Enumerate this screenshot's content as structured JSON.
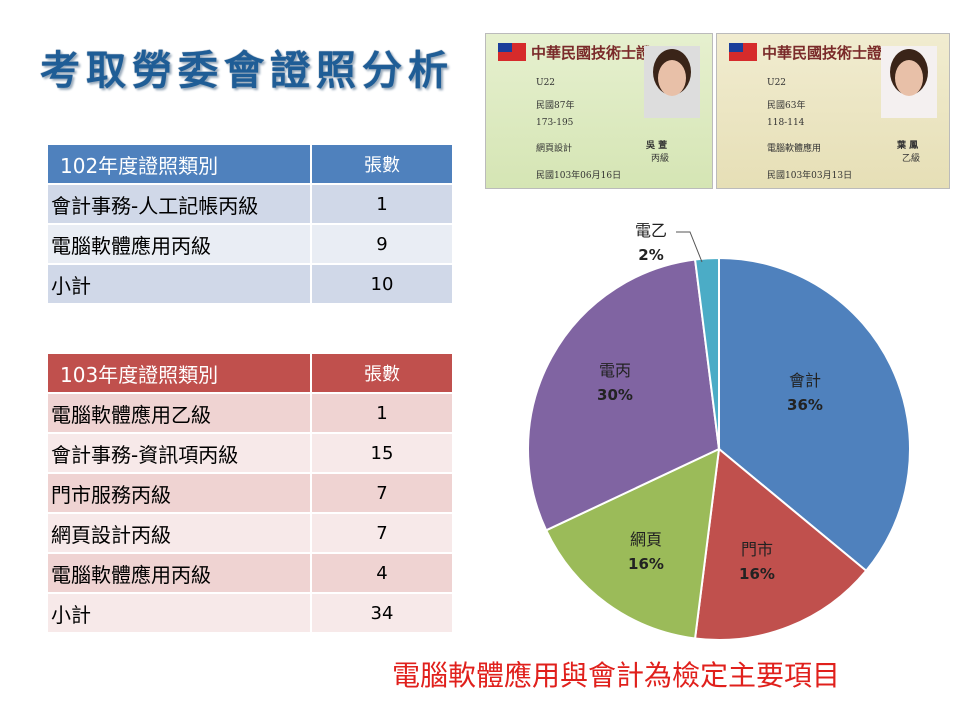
{
  "title": "考取勞委會證照分析",
  "table102": {
    "header": [
      "102年度證照類別",
      "張數"
    ],
    "rows": [
      [
        "會計事務-人工記帳丙級",
        "1"
      ],
      [
        "電腦軟體應用丙級",
        "9"
      ],
      [
        "小計",
        "10"
      ]
    ]
  },
  "table103": {
    "header": [
      "103年度證照類別",
      "張數"
    ],
    "rows": [
      [
        "電腦軟體應用乙級",
        "1"
      ],
      [
        "會計事務-資訊項丙級",
        "15"
      ],
      [
        "門市服務丙級",
        "7"
      ],
      [
        "網頁設計丙級",
        "7"
      ],
      [
        "電腦軟體應用丙級",
        "4"
      ],
      [
        "小計",
        "34"
      ]
    ]
  },
  "cards": [
    {
      "title": "中華民國技術士證",
      "id": "U22",
      "birth": "民國87年",
      "cert_no": "173-195",
      "job": "網頁設計",
      "level": "丙級",
      "name": "吳 萱",
      "date": "民國103年06月16日"
    },
    {
      "title": "中華民國技術士證",
      "id": "U22",
      "birth": "民國63年",
      "cert_no": "118-114",
      "job": "電腦軟體應用",
      "level": "乙級",
      "name": "葉 鳳",
      "date": "民國103年03月13日"
    }
  ],
  "chart_data": {
    "type": "pie",
    "start": "top",
    "direction": "clockwise",
    "slices": [
      {
        "label": "會計",
        "value": 36,
        "text": "36%",
        "color": "#4f81bd"
      },
      {
        "label": "門市",
        "value": 16,
        "text": "16%",
        "color": "#c0504d"
      },
      {
        "label": "網頁",
        "value": 16,
        "text": "16%",
        "color": "#9bbb59"
      },
      {
        "label": "電丙",
        "value": 30,
        "text": "30%",
        "color": "#8064a2"
      },
      {
        "label": "電乙",
        "value": 2,
        "text": "2%",
        "color": "#4bacc6"
      }
    ]
  },
  "caption": "電腦軟體應用與會計為檢定主要項目"
}
